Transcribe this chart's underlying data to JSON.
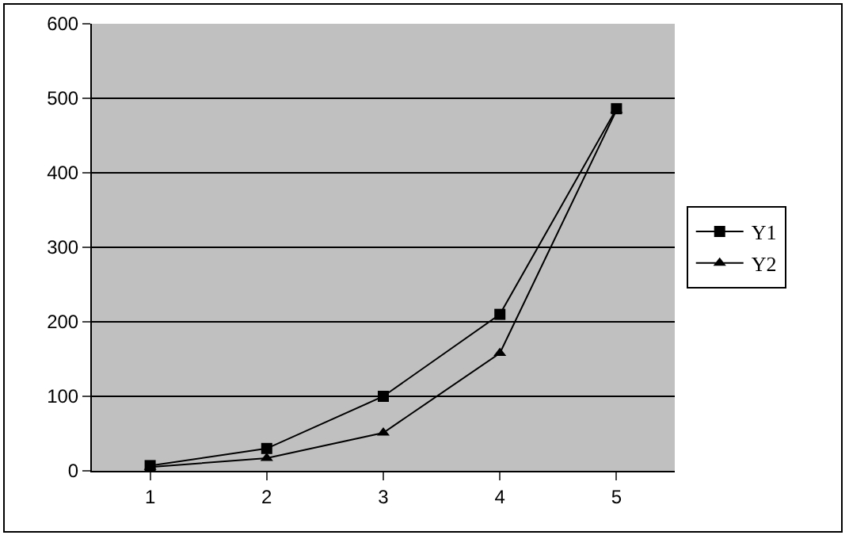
{
  "chart_data": {
    "type": "line",
    "categories": [
      "1",
      "2",
      "3",
      "4",
      "5"
    ],
    "series": [
      {
        "name": "Y1",
        "color": "#000000",
        "marker": "square",
        "values": [
          7,
          30,
          100,
          210,
          486
        ]
      },
      {
        "name": "Y2",
        "color": "#000000",
        "marker": "triangle",
        "values": [
          5,
          17,
          51,
          158,
          484
        ]
      }
    ],
    "ylim": [
      0,
      600
    ],
    "yticks": [
      0,
      100,
      200,
      300,
      400,
      500,
      600
    ],
    "grid": "y",
    "legend": "right",
    "line_style": "solid"
  }
}
